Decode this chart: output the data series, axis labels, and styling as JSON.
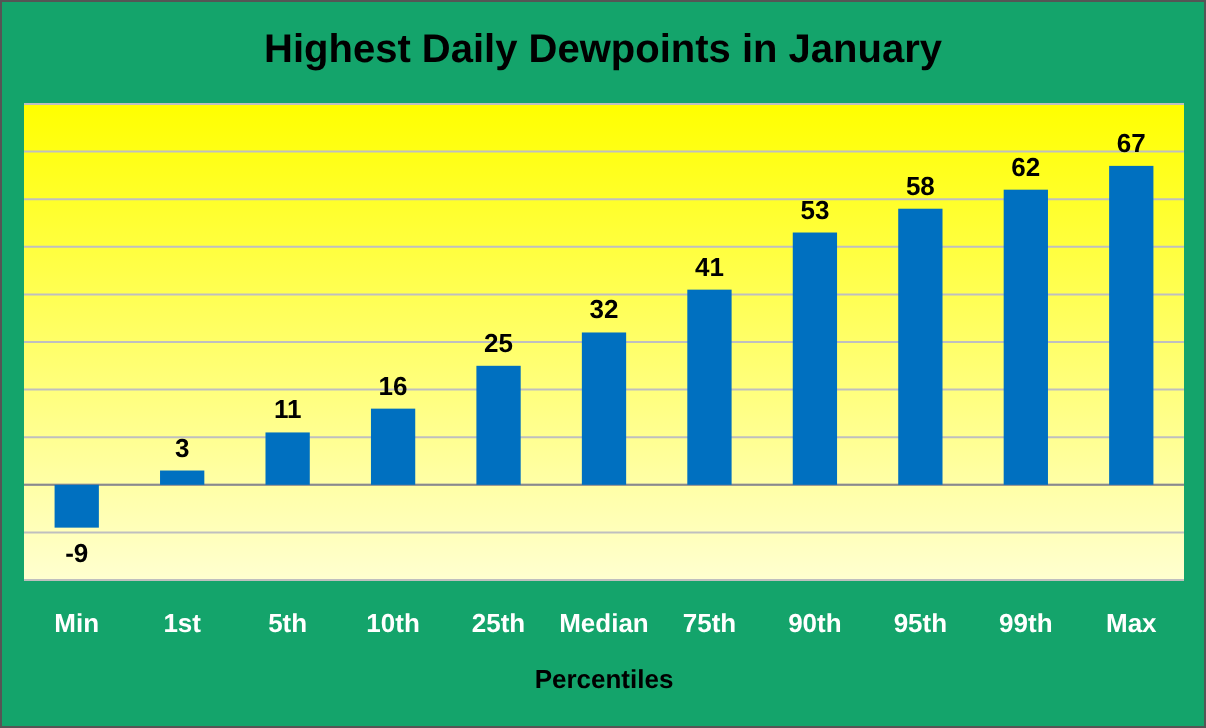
{
  "chart_data": {
    "type": "bar",
    "title": "Highest Daily Dewpoints in January",
    "xlabel": "Percentiles",
    "categories": [
      "Min",
      "1st",
      "5th",
      "10th",
      "25th",
      "Median",
      "75th",
      "90th",
      "95th",
      "99th",
      "Max"
    ],
    "values": [
      -9,
      3,
      11,
      16,
      25,
      32,
      41,
      53,
      58,
      62,
      67
    ],
    "color": "#0070c0",
    "data_labels": true,
    "grid": "y",
    "tick_labels": "x",
    "ylim": [
      -20,
      80
    ],
    "yticks": [
      {
        "value": -20,
        "label": null
      },
      {
        "value": -10,
        "label": null
      },
      {
        "value": 0,
        "label": null
      },
      {
        "value": 10,
        "label": null
      },
      {
        "value": 20,
        "label": null
      },
      {
        "value": 30,
        "label": null
      },
      {
        "value": 40,
        "label": null
      },
      {
        "value": 50,
        "label": null
      },
      {
        "value": 60,
        "label": null
      },
      {
        "value": 70,
        "label": null
      },
      {
        "value": 80,
        "label": null
      }
    ]
  }
}
